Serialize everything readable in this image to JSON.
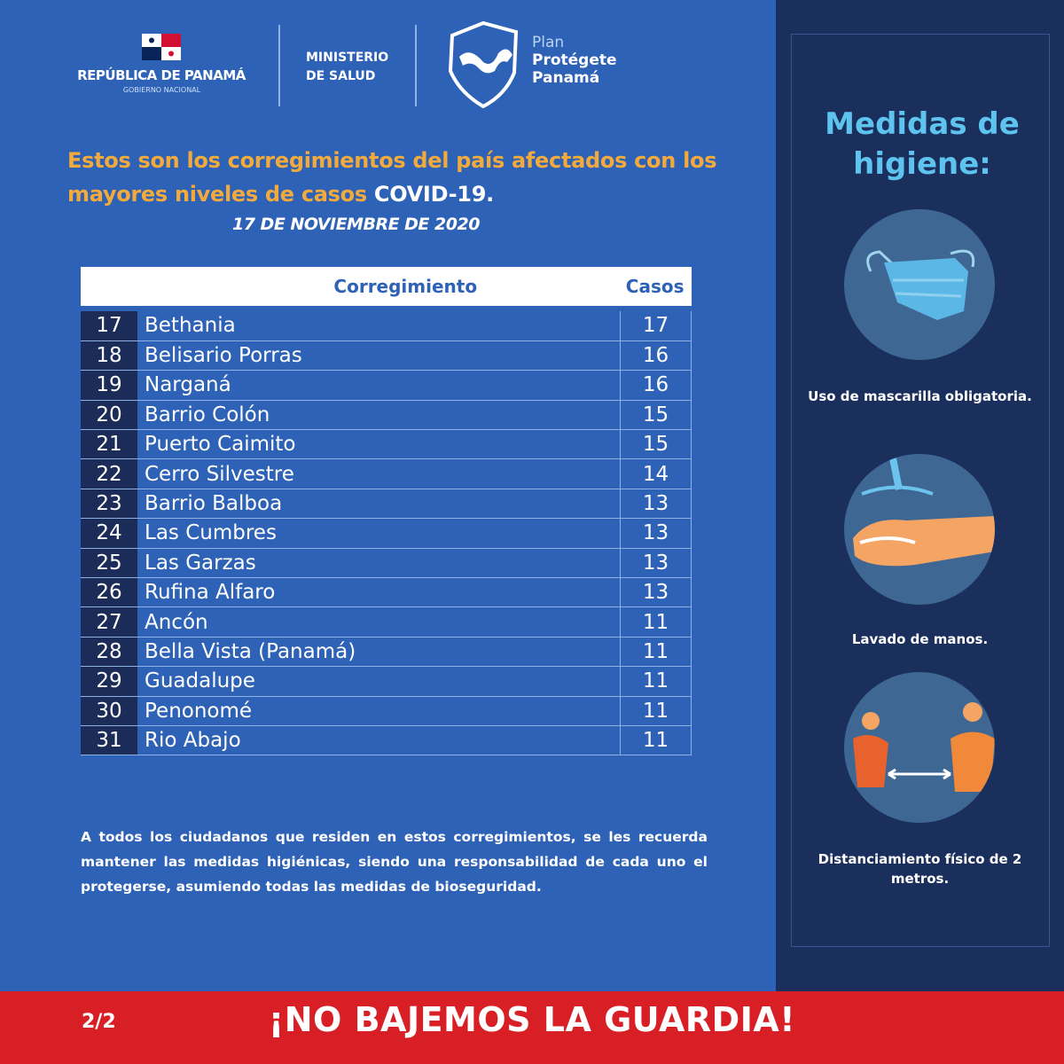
{
  "header": {
    "gov_name": "REPÚBLICA DE PANAMÁ",
    "gov_sub": "GOBIERNO NACIONAL",
    "ministry_line1": "MINISTERIO",
    "ministry_line2": "DE SALUD",
    "plan_line1": "Plan",
    "plan_line2": "Protégete",
    "plan_line3": "Panamá"
  },
  "title": {
    "orange_text": "Estos son los corregimientos del país afectados con los mayores niveles de casos",
    "white_text": "COVID-19.",
    "date": "17  DE NOVIEMBRE DE 2020"
  },
  "table": {
    "headers": [
      "",
      "Corregimiento",
      "Casos"
    ],
    "rows": [
      {
        "rank": "17",
        "name": "Bethania",
        "cases": "17"
      },
      {
        "rank": "18",
        "name": "Belisario Porras",
        "cases": "16"
      },
      {
        "rank": "19",
        "name": "Narganá",
        "cases": "16"
      },
      {
        "rank": "20",
        "name": "Barrio Colón",
        "cases": "15"
      },
      {
        "rank": "21",
        "name": "Puerto Caimito",
        "cases": "15"
      },
      {
        "rank": "22",
        "name": "Cerro Silvestre",
        "cases": "14"
      },
      {
        "rank": "23",
        "name": "Barrio Balboa",
        "cases": "13"
      },
      {
        "rank": "24",
        "name": "Las Cumbres",
        "cases": "13"
      },
      {
        "rank": "25",
        "name": "Las Garzas",
        "cases": "13"
      },
      {
        "rank": "26",
        "name": "Rufina Alfaro",
        "cases": "13"
      },
      {
        "rank": "27",
        "name": "Ancón",
        "cases": "11"
      },
      {
        "rank": "28",
        "name": "Bella Vista (Panamá)",
        "cases": "11"
      },
      {
        "rank": "29",
        "name": "Guadalupe",
        "cases": "11"
      },
      {
        "rank": "30",
        "name": "Penonomé",
        "cases": "11"
      },
      {
        "rank": "31",
        "name": "Rio Abajo",
        "cases": "11"
      }
    ]
  },
  "paragraph": "A todos los ciudadanos que residen en estos corregimientos, se les recuerda mantener las medidas higiénicas, siendo una responsabilidad de cada uno el protegerse, asumiendo todas  las medidas de bioseguridad.",
  "hygiene": {
    "heading": "Medidas de higiene:",
    "items": [
      {
        "icon": "face-mask-icon",
        "caption": "Uso de mascarilla obligatoria."
      },
      {
        "icon": "hand-washing-icon",
        "caption": "Lavado de manos."
      },
      {
        "icon": "social-distance-icon",
        "caption": "Distanciamiento físico de 2 metros."
      }
    ]
  },
  "footer": {
    "page": "2/2",
    "slogan": "¡NO BAJEMOS LA GUARDIA!"
  },
  "colors": {
    "main_bg": "#2d62b6",
    "panel_bg": "#1b2f5d",
    "accent_orange": "#f3aa3d",
    "heading_blue": "#5ec3ee",
    "footer_red": "#d81f26"
  }
}
